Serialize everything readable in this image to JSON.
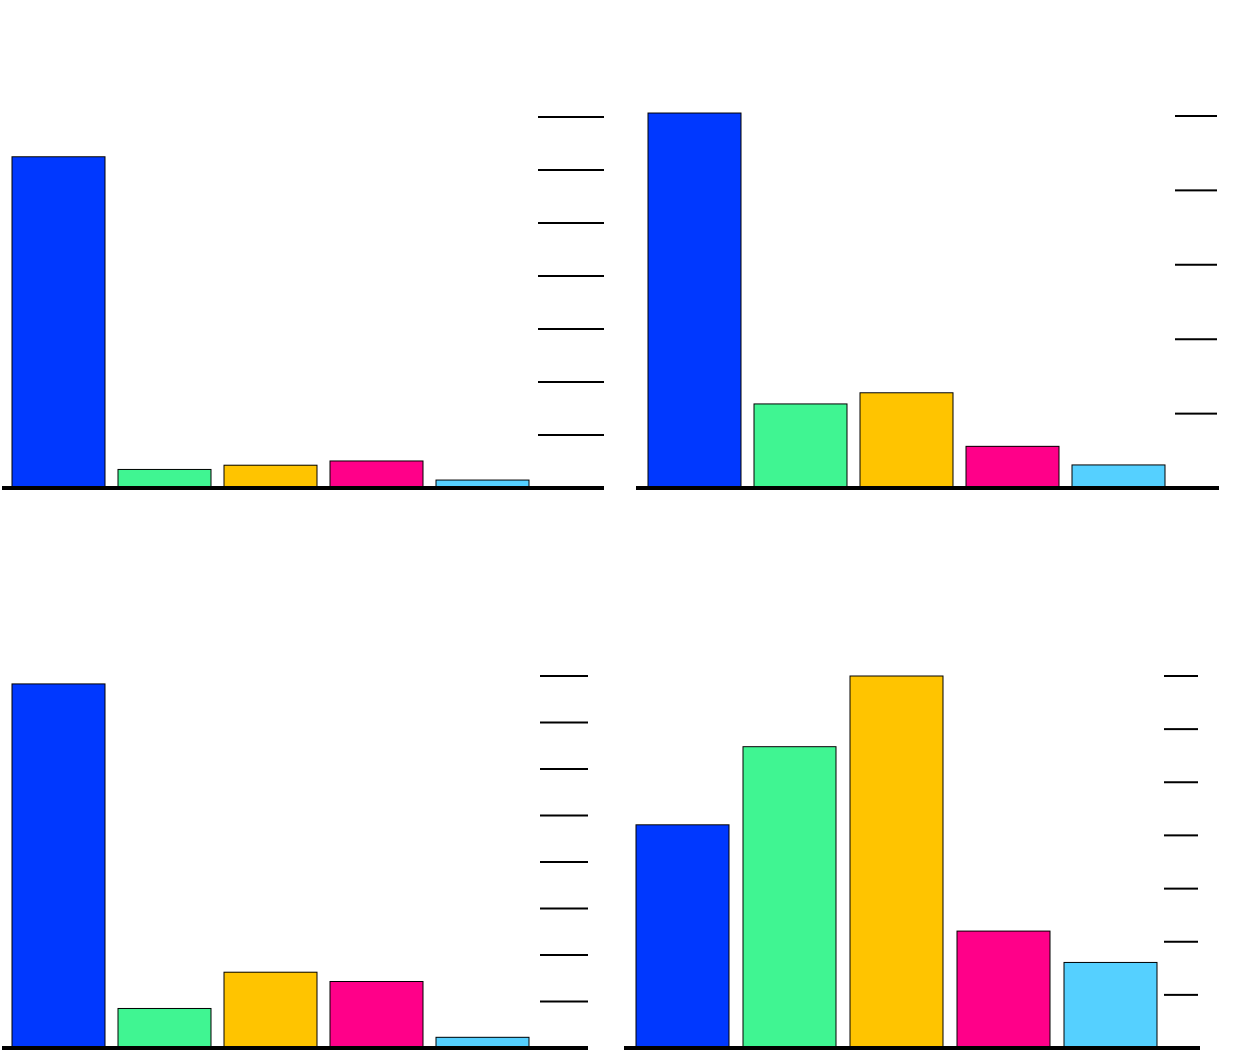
{
  "colors": {
    "blue": "#0038ff",
    "green": "#40f592",
    "yellow": "#ffc400",
    "magenta": "#ff0089",
    "cyan": "#55d0ff"
  },
  "chart_data": [
    {
      "type": "bar",
      "position": "top-left",
      "categories": [
        "",
        "",
        "",
        "",
        ""
      ],
      "values": [
        6.25,
        0.35,
        0.43,
        0.51,
        0.15
      ],
      "ylim": [
        0,
        7
      ],
      "y_ticks": [
        1,
        2,
        3,
        4,
        5,
        6,
        7
      ],
      "tick_labels_visible": false,
      "axis_side": "right",
      "grid": false,
      "legend": "none",
      "bar_colors": [
        "#0038ff",
        "#40f592",
        "#ffc400",
        "#ff0089",
        "#55d0ff"
      ]
    },
    {
      "type": "bar",
      "position": "top-right",
      "categories": [
        "",
        "",
        "",
        "",
        ""
      ],
      "values": [
        5.04,
        1.13,
        1.28,
        0.56,
        0.31
      ],
      "ylim": [
        0,
        5
      ],
      "y_ticks": [
        1,
        2,
        3,
        4,
        5
      ],
      "tick_labels_visible": false,
      "axis_side": "right",
      "grid": false,
      "legend": "none",
      "bar_colors": [
        "#0038ff",
        "#40f592",
        "#ffc400",
        "#ff0089",
        "#55d0ff"
      ]
    },
    {
      "type": "bar",
      "position": "bottom-left",
      "categories": [
        "",
        "",
        "",
        "",
        ""
      ],
      "values": [
        7.83,
        0.85,
        1.63,
        1.43,
        0.23
      ],
      "ylim": [
        0,
        8
      ],
      "y_ticks": [
        1,
        2,
        3,
        4,
        5,
        6,
        7,
        8
      ],
      "tick_labels_visible": false,
      "axis_side": "right",
      "grid": false,
      "legend": "none",
      "bar_colors": [
        "#0038ff",
        "#40f592",
        "#ffc400",
        "#ff0089",
        "#55d0ff"
      ]
    },
    {
      "type": "bar",
      "position": "bottom-right",
      "categories": [
        "",
        "",
        "",
        "",
        ""
      ],
      "values": [
        4.2,
        5.67,
        7.0,
        2.2,
        1.61
      ],
      "ylim": [
        0,
        7
      ],
      "y_ticks": [
        1,
        2,
        3,
        4,
        5,
        6,
        7
      ],
      "tick_labels_visible": false,
      "axis_side": "right",
      "grid": false,
      "legend": "none",
      "bar_colors": [
        "#0038ff",
        "#40f592",
        "#ffc400",
        "#ff0089",
        "#55d0ff"
      ]
    }
  ]
}
